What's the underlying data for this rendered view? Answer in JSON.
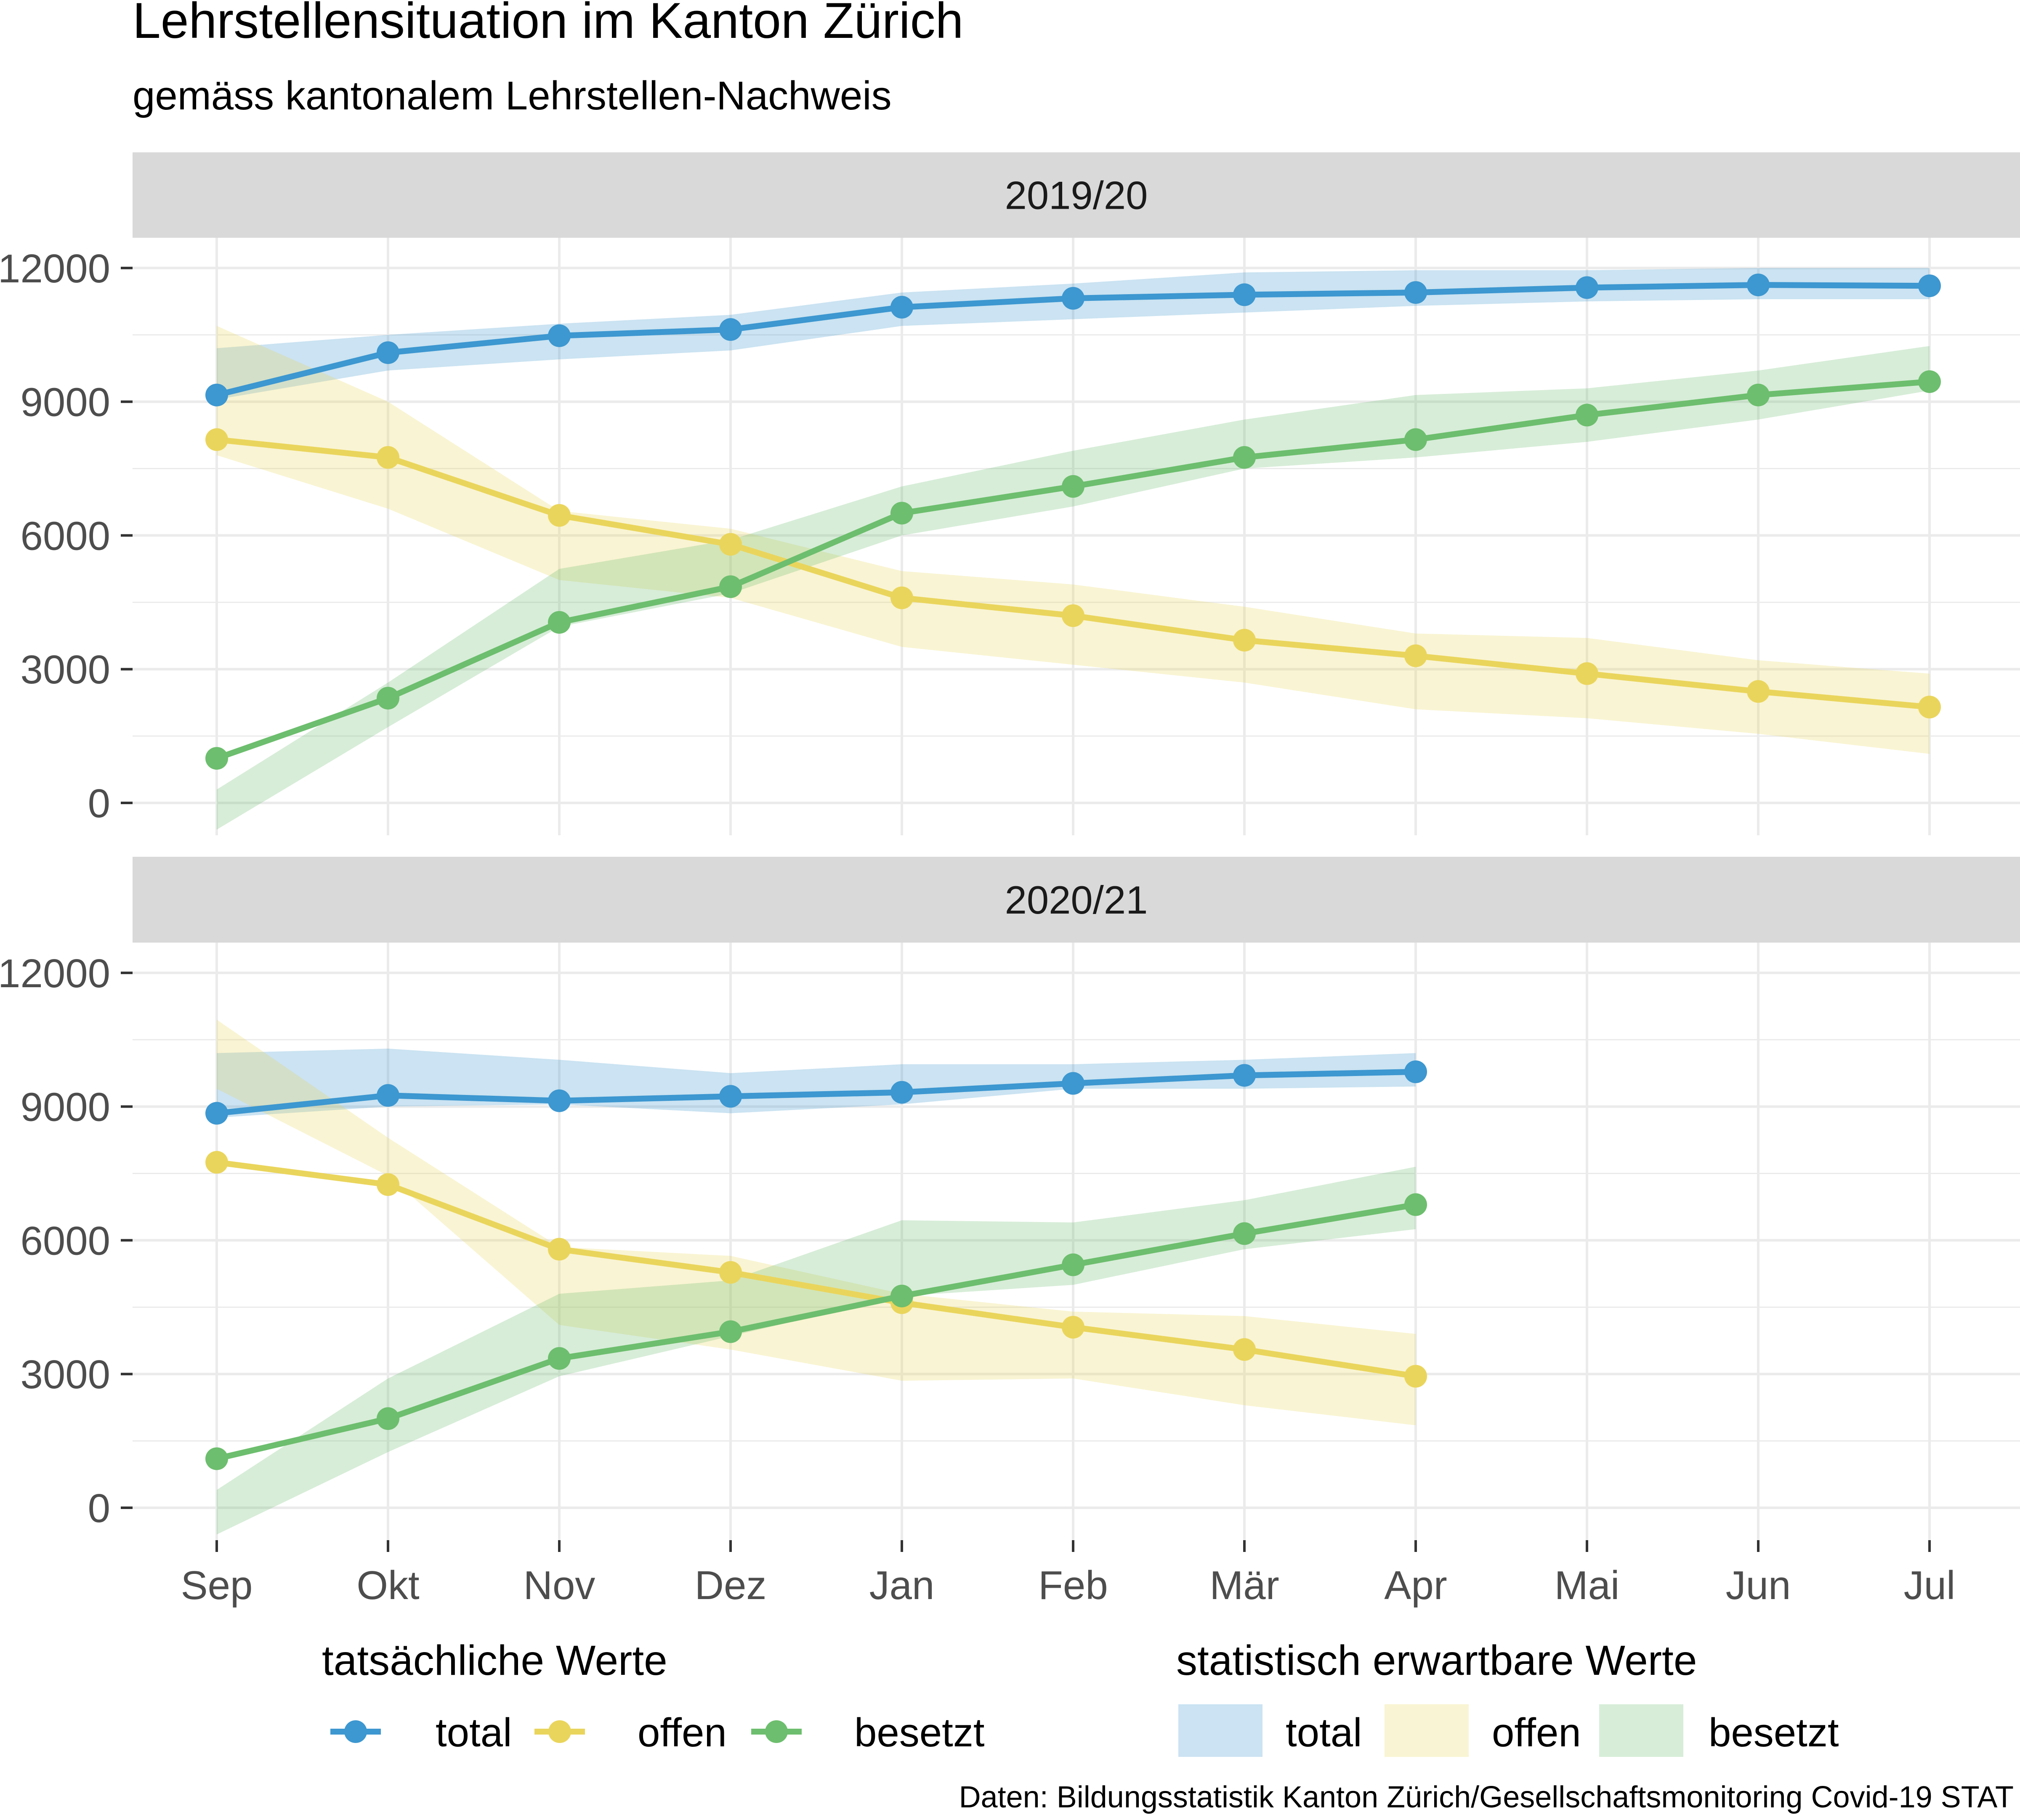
{
  "title": "Lehrstellensituation im Kanton Zürich",
  "subtitle": "gemäss kantonalem Lehrstellen-Nachweis",
  "caption": "Daten: Bildungsstatistik Kanton Zürich/Gesellschaftsmonitoring Covid-19 STAT",
  "colors": {
    "total": "#3d97d0",
    "offen": "#ead55c",
    "besetzt": "#6dbe6e"
  },
  "legend": {
    "actual_title": "tatsächliche Werte",
    "expected_title": "statistisch erwartbare Werte",
    "items": [
      "total",
      "offen",
      "besetzt"
    ]
  },
  "chart_data": {
    "type": "line",
    "categories": [
      "Sep",
      "Okt",
      "Nov",
      "Dez",
      "Jan",
      "Feb",
      "Mär",
      "Apr",
      "Mai",
      "Jun",
      "Jul"
    ],
    "y_ticks": [
      "0",
      "3000",
      "6000",
      "9000",
      "12000"
    ],
    "ylim": [
      -600,
      12500
    ],
    "grid": true,
    "legend_position": "bottom",
    "panels": [
      {
        "label": "2019/20",
        "series": [
          {
            "name": "total",
            "values": [
              9150,
              10100,
              10480,
              10620,
              11120,
              11320,
              11400,
              11450,
              11560,
              11620,
              11600
            ],
            "lower": [
              9050,
              9700,
              9950,
              10150,
              10700,
              10850,
              11000,
              11150,
              11250,
              11300,
              11300
            ],
            "upper": [
              10200,
              10500,
              10750,
              10950,
              11450,
              11650,
              11900,
              11950,
              11950,
              12000,
              12000
            ]
          },
          {
            "name": "offen",
            "values": [
              8150,
              7750,
              6450,
              5800,
              4600,
              4200,
              3650,
              3300,
              2900,
              2500,
              2150
            ],
            "lower": [
              7800,
              6600,
              5000,
              4600,
              3500,
              3100,
              2700,
              2100,
              1900,
              1550,
              1100
            ],
            "upper": [
              10700,
              9000,
              6550,
              6150,
              5200,
              4900,
              4400,
              3800,
              3700,
              3200,
              2900
            ]
          },
          {
            "name": "besetzt",
            "values": [
              1000,
              2350,
              4050,
              4850,
              6500,
              7100,
              7750,
              8150,
              8700,
              9150,
              9450
            ],
            "lower": [
              -600,
              1700,
              3950,
              4700,
              6000,
              6650,
              7500,
              7750,
              8100,
              8600,
              9250
            ],
            "upper": [
              300,
              2700,
              5250,
              5900,
              7100,
              7900,
              8600,
              9150,
              9300,
              9700,
              10250
            ]
          }
        ]
      },
      {
        "label": "2020/21",
        "series": [
          {
            "name": "total",
            "values": [
              8850,
              9250,
              9130,
              9230,
              9320,
              9520,
              9700,
              9780
            ],
            "lower": [
              8750,
              9000,
              9050,
              8850,
              9050,
              9400,
              9400,
              9450
            ],
            "upper": [
              10200,
              10300,
              10050,
              9750,
              9950,
              9950,
              10050,
              10200
            ]
          },
          {
            "name": "offen",
            "values": [
              7750,
              7250,
              5800,
              5280,
              4600,
              4050,
              3550,
              2950
            ],
            "lower": [
              9400,
              7450,
              4100,
              3550,
              2850,
              2900,
              2300,
              1850
            ],
            "upper": [
              10950,
              8300,
              5850,
              5650,
              4800,
              4400,
              4300,
              3900
            ]
          },
          {
            "name": "besetzt",
            "values": [
              1100,
              2000,
              3350,
              3950,
              4750,
              5450,
              6150,
              6800
            ],
            "lower": [
              -600,
              1250,
              2950,
              3850,
              4750,
              5000,
              5800,
              6250
            ],
            "upper": [
              400,
              2900,
              4800,
              5100,
              6450,
              6400,
              6900,
              7650
            ]
          }
        ]
      }
    ]
  }
}
